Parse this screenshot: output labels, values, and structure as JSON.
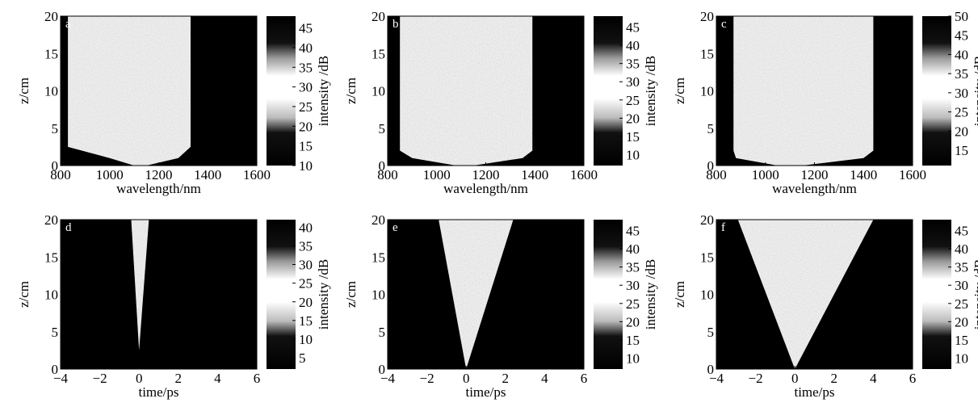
{
  "chart_data": [
    {
      "type": "heatmap",
      "panel": "a",
      "xlabel": "wavelength/nm",
      "ylabel": "z/cm",
      "colorbar_label": "intensity /dB",
      "xlim": [
        800,
        1600
      ],
      "xticks": [
        800,
        1000,
        1200,
        1400,
        1600
      ],
      "ylim": [
        0,
        20
      ],
      "yticks": [
        0,
        5,
        10,
        15,
        20
      ],
      "clim": [
        10,
        48
      ],
      "cticks": [
        10,
        15,
        20,
        25,
        30,
        35,
        40,
        45
      ],
      "envelope": {
        "z": [
          0,
          1,
          2.5,
          20
        ],
        "left": [
          1100,
          1000,
          830,
          830
        ],
        "right": [
          1150,
          1280,
          1330,
          1330
        ]
      }
    },
    {
      "type": "heatmap",
      "panel": "b",
      "xlabel": "wavelength/nm",
      "ylabel": "z/cm",
      "colorbar_label": "intensity /dB",
      "xlim": [
        800,
        1600
      ],
      "xticks": [
        800,
        1000,
        1200,
        1400,
        1600
      ],
      "ylim": [
        0,
        20
      ],
      "yticks": [
        0,
        5,
        10,
        15,
        20
      ],
      "clim": [
        7,
        48
      ],
      "cticks": [
        10,
        15,
        20,
        25,
        30,
        35,
        40,
        45
      ],
      "envelope": {
        "z": [
          0,
          1,
          2,
          20
        ],
        "left": [
          1080,
          900,
          850,
          850
        ],
        "right": [
          1150,
          1350,
          1390,
          1390
        ]
      }
    },
    {
      "type": "heatmap",
      "panel": "c",
      "xlabel": "wavelength/nm",
      "ylabel": "z/cm",
      "colorbar_label": "intensity /dB",
      "xlim": [
        800,
        1600
      ],
      "xticks": [
        800,
        1000,
        1200,
        1400,
        1600
      ],
      "ylim": [
        0,
        20
      ],
      "yticks": [
        0,
        5,
        10,
        15,
        20
      ],
      "clim": [
        11,
        50
      ],
      "cticks": [
        15,
        20,
        25,
        30,
        35,
        40,
        45,
        50
      ],
      "envelope": {
        "z": [
          0,
          1,
          2,
          20
        ],
        "left": [
          1050,
          880,
          870,
          870
        ],
        "right": [
          1150,
          1400,
          1440,
          1440
        ]
      }
    },
    {
      "type": "heatmap",
      "panel": "d",
      "xlabel": "time/ps",
      "ylabel": "z/cm",
      "colorbar_label": "intensity /dB",
      "xlim": [
        -4,
        6
      ],
      "xticks": [
        {
          "value": -4,
          "label": "−4"
        },
        {
          "value": -2,
          "label": "−2"
        },
        0,
        2,
        4,
        6
      ],
      "ylim": [
        0,
        20
      ],
      "yticks": [
        0,
        5,
        10,
        15,
        20
      ],
      "clim": [
        2,
        42
      ],
      "cticks": [
        5,
        10,
        15,
        20,
        25,
        30,
        35,
        40
      ],
      "envelope": {
        "z": [
          2.5,
          20
        ],
        "left": [
          0,
          -0.4
        ],
        "right": [
          0,
          0.5
        ]
      }
    },
    {
      "type": "heatmap",
      "panel": "e",
      "xlabel": "time/ps",
      "ylabel": "z/cm",
      "colorbar_label": "intensity /dB",
      "xlim": [
        -4,
        6
      ],
      "xticks": [
        {
          "value": -4,
          "label": "−4"
        },
        {
          "value": -2,
          "label": "−2"
        },
        0,
        2,
        4,
        6
      ],
      "ylim": [
        0,
        20
      ],
      "yticks": [
        0,
        5,
        10,
        15,
        20
      ],
      "clim": [
        7,
        48
      ],
      "cticks": [
        10,
        15,
        20,
        25,
        30,
        35,
        40,
        45
      ],
      "envelope": {
        "z": [
          0,
          20
        ],
        "left": [
          0,
          -1.4
        ],
        "right": [
          0,
          2.4
        ]
      }
    },
    {
      "type": "heatmap",
      "panel": "f",
      "xlabel": "time/ps",
      "ylabel": "z/cm",
      "colorbar_label": "intensity /dB",
      "xlim": [
        -4,
        6
      ],
      "xticks": [
        {
          "value": -4,
          "label": "−4"
        },
        {
          "value": -2,
          "label": "−2"
        },
        0,
        2,
        4,
        6
      ],
      "ylim": [
        0,
        20
      ],
      "yticks": [
        0,
        5,
        10,
        15,
        20
      ],
      "clim": [
        7,
        48
      ],
      "cticks": [
        10,
        15,
        20,
        25,
        30,
        35,
        40,
        45
      ],
      "envelope": {
        "z": [
          0,
          20
        ],
        "left": [
          0,
          -2.9
        ],
        "right": [
          0,
          4.0
        ]
      }
    }
  ]
}
